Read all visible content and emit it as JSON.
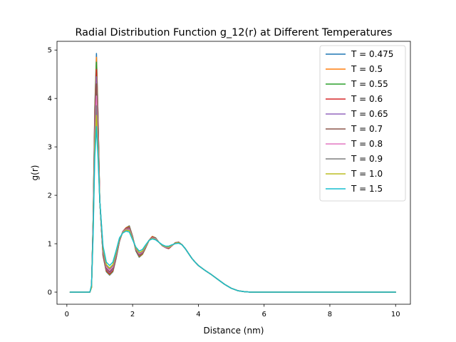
{
  "chart_data": {
    "type": "line",
    "title": "Radial Distribution Function g_12(r) at Different Temperatures",
    "xlabel": "Distance (nm)",
    "ylabel": "g(r)",
    "xlim": [
      -0.3,
      10.45
    ],
    "ylim": [
      -0.25,
      5.18
    ],
    "xticks": [
      0,
      2,
      4,
      6,
      8,
      10
    ],
    "yticks": [
      0,
      1,
      2,
      3,
      4,
      5
    ],
    "grid": false,
    "legend_position": "top-right",
    "series": [
      {
        "name": "T = 0.475",
        "color": "#1f77b4",
        "x": [
          0.1,
          0.7,
          0.75,
          0.8,
          0.85,
          0.9,
          0.95,
          1.0,
          1.1,
          1.2,
          1.3,
          1.4,
          1.5,
          1.6,
          1.7,
          1.8,
          1.9,
          2.0,
          2.1,
          2.2,
          2.3,
          2.4,
          2.5,
          2.6,
          2.7,
          2.8,
          2.9,
          3.0,
          3.1,
          3.2,
          3.3,
          3.4,
          3.5,
          3.6,
          3.7,
          3.8,
          3.9,
          4.0,
          4.2,
          4.4,
          4.6,
          4.8,
          5.0,
          5.2,
          5.4,
          5.6,
          6.0,
          7.0,
          8.0,
          9.0,
          10.0
        ],
        "y": [
          0,
          0,
          0.1,
          1.5,
          3.8,
          4.93,
          3.6,
          1.9,
          0.75,
          0.42,
          0.35,
          0.42,
          0.7,
          1.05,
          1.25,
          1.33,
          1.37,
          1.15,
          0.85,
          0.72,
          0.78,
          0.92,
          1.07,
          1.15,
          1.12,
          1.03,
          0.96,
          0.92,
          0.9,
          0.96,
          1.02,
          1.03,
          0.98,
          0.9,
          0.8,
          0.7,
          0.62,
          0.55,
          0.45,
          0.36,
          0.26,
          0.16,
          0.08,
          0.03,
          0.01,
          0,
          0,
          0,
          0,
          0,
          0
        ]
      },
      {
        "name": "T = 0.5",
        "color": "#ff7f0e",
        "x": [
          0.1,
          0.7,
          0.75,
          0.8,
          0.85,
          0.9,
          0.95,
          1.0,
          1.1,
          1.2,
          1.3,
          1.4,
          1.5,
          1.6,
          1.7,
          1.8,
          1.9,
          2.0,
          2.1,
          2.2,
          2.3,
          2.4,
          2.5,
          2.6,
          2.7,
          2.8,
          2.9,
          3.0,
          3.1,
          3.2,
          3.3,
          3.4,
          3.5,
          3.6,
          3.7,
          3.8,
          3.9,
          4.0,
          4.2,
          4.4,
          4.6,
          4.8,
          5.0,
          5.2,
          5.4,
          5.6,
          6.0,
          7.0,
          8.0,
          9.0,
          10.0
        ],
        "y": [
          0,
          0,
          0.1,
          1.5,
          3.75,
          4.85,
          3.6,
          1.9,
          0.76,
          0.43,
          0.36,
          0.43,
          0.71,
          1.05,
          1.25,
          1.33,
          1.36,
          1.15,
          0.86,
          0.73,
          0.78,
          0.92,
          1.07,
          1.15,
          1.12,
          1.03,
          0.96,
          0.92,
          0.9,
          0.96,
          1.02,
          1.03,
          0.98,
          0.9,
          0.8,
          0.7,
          0.62,
          0.55,
          0.45,
          0.36,
          0.26,
          0.16,
          0.08,
          0.03,
          0.01,
          0,
          0,
          0,
          0,
          0,
          0
        ]
      },
      {
        "name": "T = 0.55",
        "color": "#2ca02c",
        "x": [
          0.1,
          0.7,
          0.75,
          0.8,
          0.85,
          0.9,
          0.95,
          1.0,
          1.1,
          1.2,
          1.3,
          1.4,
          1.5,
          1.6,
          1.7,
          1.8,
          1.9,
          2.0,
          2.1,
          2.2,
          2.3,
          2.4,
          2.5,
          2.6,
          2.7,
          2.8,
          2.9,
          3.0,
          3.1,
          3.2,
          3.3,
          3.4,
          3.5,
          3.6,
          3.7,
          3.8,
          3.9,
          4.0,
          4.2,
          4.4,
          4.6,
          4.8,
          5.0,
          5.2,
          5.4,
          5.6,
          6.0,
          7.0,
          8.0,
          9.0,
          10.0
        ],
        "y": [
          0,
          0,
          0.1,
          1.5,
          3.7,
          4.75,
          3.55,
          1.9,
          0.77,
          0.44,
          0.37,
          0.44,
          0.72,
          1.05,
          1.25,
          1.32,
          1.35,
          1.15,
          0.86,
          0.74,
          0.79,
          0.92,
          1.07,
          1.14,
          1.12,
          1.03,
          0.96,
          0.92,
          0.9,
          0.96,
          1.02,
          1.03,
          0.98,
          0.9,
          0.8,
          0.7,
          0.62,
          0.55,
          0.45,
          0.36,
          0.26,
          0.16,
          0.08,
          0.03,
          0.01,
          0,
          0,
          0,
          0,
          0,
          0
        ]
      },
      {
        "name": "T = 0.6",
        "color": "#d62728",
        "x": [
          0.1,
          0.7,
          0.75,
          0.8,
          0.85,
          0.9,
          0.95,
          1.0,
          1.1,
          1.2,
          1.3,
          1.4,
          1.5,
          1.6,
          1.7,
          1.8,
          1.9,
          2.0,
          2.1,
          2.2,
          2.3,
          2.4,
          2.5,
          2.6,
          2.7,
          2.8,
          2.9,
          3.0,
          3.1,
          3.2,
          3.3,
          3.4,
          3.5,
          3.6,
          3.7,
          3.8,
          3.9,
          4.0,
          4.2,
          4.4,
          4.6,
          4.8,
          5.0,
          5.2,
          5.4,
          5.6,
          6.0,
          7.0,
          8.0,
          9.0,
          10.0
        ],
        "y": [
          0,
          0,
          0.1,
          1.45,
          3.6,
          4.6,
          3.45,
          1.9,
          0.78,
          0.45,
          0.38,
          0.45,
          0.73,
          1.06,
          1.25,
          1.32,
          1.34,
          1.14,
          0.87,
          0.75,
          0.8,
          0.93,
          1.07,
          1.14,
          1.11,
          1.03,
          0.96,
          0.92,
          0.9,
          0.96,
          1.02,
          1.03,
          0.98,
          0.9,
          0.8,
          0.7,
          0.62,
          0.55,
          0.45,
          0.36,
          0.26,
          0.16,
          0.08,
          0.03,
          0.01,
          0,
          0,
          0,
          0,
          0,
          0
        ]
      },
      {
        "name": "T = 0.65",
        "color": "#9467bd",
        "x": [
          0.1,
          0.7,
          0.75,
          0.8,
          0.85,
          0.9,
          0.95,
          1.0,
          1.1,
          1.2,
          1.3,
          1.4,
          1.5,
          1.6,
          1.7,
          1.8,
          1.9,
          2.0,
          2.1,
          2.2,
          2.3,
          2.4,
          2.5,
          2.6,
          2.7,
          2.8,
          2.9,
          3.0,
          3.1,
          3.2,
          3.3,
          3.4,
          3.5,
          3.6,
          3.7,
          3.8,
          3.9,
          4.0,
          4.2,
          4.4,
          4.6,
          4.8,
          5.0,
          5.2,
          5.4,
          5.6,
          6.0,
          7.0,
          8.0,
          9.0,
          10.0
        ],
        "y": [
          0,
          0,
          0.1,
          1.45,
          3.5,
          4.45,
          3.4,
          1.9,
          0.8,
          0.47,
          0.4,
          0.47,
          0.74,
          1.06,
          1.25,
          1.31,
          1.33,
          1.14,
          0.88,
          0.76,
          0.81,
          0.93,
          1.07,
          1.13,
          1.11,
          1.03,
          0.96,
          0.92,
          0.91,
          0.96,
          1.02,
          1.03,
          0.98,
          0.9,
          0.8,
          0.7,
          0.62,
          0.55,
          0.45,
          0.36,
          0.26,
          0.16,
          0.08,
          0.03,
          0.01,
          0,
          0,
          0,
          0,
          0,
          0
        ]
      },
      {
        "name": "T = 0.7",
        "color": "#8c564b",
        "x": [
          0.1,
          0.7,
          0.75,
          0.8,
          0.85,
          0.9,
          0.95,
          1.0,
          1.1,
          1.2,
          1.3,
          1.4,
          1.5,
          1.6,
          1.7,
          1.8,
          1.9,
          2.0,
          2.1,
          2.2,
          2.3,
          2.4,
          2.5,
          2.6,
          2.7,
          2.8,
          2.9,
          3.0,
          3.1,
          3.2,
          3.3,
          3.4,
          3.5,
          3.6,
          3.7,
          3.8,
          3.9,
          4.0,
          4.2,
          4.4,
          4.6,
          4.8,
          5.0,
          5.2,
          5.4,
          5.6,
          6.0,
          7.0,
          8.0,
          9.0,
          10.0
        ],
        "y": [
          0,
          0,
          0.1,
          1.4,
          3.4,
          4.3,
          3.3,
          1.9,
          0.82,
          0.49,
          0.42,
          0.49,
          0.76,
          1.07,
          1.24,
          1.31,
          1.32,
          1.13,
          0.88,
          0.77,
          0.82,
          0.94,
          1.07,
          1.13,
          1.1,
          1.03,
          0.96,
          0.93,
          0.91,
          0.96,
          1.02,
          1.03,
          0.98,
          0.9,
          0.8,
          0.7,
          0.62,
          0.55,
          0.45,
          0.36,
          0.26,
          0.16,
          0.08,
          0.03,
          0.01,
          0,
          0,
          0,
          0,
          0,
          0
        ]
      },
      {
        "name": "T = 0.8",
        "color": "#e377c2",
        "x": [
          0.1,
          0.7,
          0.75,
          0.8,
          0.85,
          0.9,
          0.95,
          1.0,
          1.1,
          1.2,
          1.3,
          1.4,
          1.5,
          1.6,
          1.7,
          1.8,
          1.9,
          2.0,
          2.1,
          2.2,
          2.3,
          2.4,
          2.5,
          2.6,
          2.7,
          2.8,
          2.9,
          3.0,
          3.1,
          3.2,
          3.3,
          3.4,
          3.5,
          3.6,
          3.7,
          3.8,
          3.9,
          4.0,
          4.2,
          4.4,
          4.6,
          4.8,
          5.0,
          5.2,
          5.4,
          5.6,
          6.0,
          7.0,
          8.0,
          9.0,
          10.0
        ],
        "y": [
          0,
          0,
          0.1,
          1.35,
          3.25,
          4.05,
          3.15,
          1.9,
          0.85,
          0.52,
          0.45,
          0.52,
          0.78,
          1.08,
          1.24,
          1.3,
          1.3,
          1.12,
          0.89,
          0.79,
          0.83,
          0.95,
          1.07,
          1.12,
          1.1,
          1.03,
          0.96,
          0.93,
          0.92,
          0.96,
          1.01,
          1.02,
          0.98,
          0.9,
          0.8,
          0.7,
          0.62,
          0.55,
          0.45,
          0.36,
          0.26,
          0.16,
          0.08,
          0.03,
          0.01,
          0,
          0,
          0,
          0,
          0,
          0
        ]
      },
      {
        "name": "T = 0.9",
        "color": "#7f7f7f",
        "x": [
          0.1,
          0.7,
          0.75,
          0.8,
          0.85,
          0.9,
          0.95,
          1.0,
          1.1,
          1.2,
          1.3,
          1.4,
          1.5,
          1.6,
          1.7,
          1.8,
          1.9,
          2.0,
          2.1,
          2.2,
          2.3,
          2.4,
          2.5,
          2.6,
          2.7,
          2.8,
          2.9,
          3.0,
          3.1,
          3.2,
          3.3,
          3.4,
          3.5,
          3.6,
          3.7,
          3.8,
          3.9,
          4.0,
          4.2,
          4.4,
          4.6,
          4.8,
          5.0,
          5.2,
          5.4,
          5.6,
          6.0,
          7.0,
          8.0,
          9.0,
          10.0
        ],
        "y": [
          0,
          0,
          0.1,
          1.3,
          3.1,
          3.85,
          3.0,
          1.9,
          0.88,
          0.55,
          0.48,
          0.55,
          0.8,
          1.09,
          1.23,
          1.29,
          1.28,
          1.11,
          0.9,
          0.81,
          0.84,
          0.96,
          1.07,
          1.11,
          1.09,
          1.03,
          0.96,
          0.94,
          0.93,
          0.97,
          1.01,
          1.02,
          0.98,
          0.9,
          0.8,
          0.7,
          0.62,
          0.55,
          0.45,
          0.36,
          0.26,
          0.16,
          0.08,
          0.03,
          0.01,
          0,
          0,
          0,
          0,
          0,
          0
        ]
      },
      {
        "name": "T = 1.0",
        "color": "#bcbd22",
        "x": [
          0.1,
          0.7,
          0.75,
          0.8,
          0.85,
          0.9,
          0.95,
          1.0,
          1.1,
          1.2,
          1.3,
          1.4,
          1.5,
          1.6,
          1.7,
          1.8,
          1.9,
          2.0,
          2.1,
          2.2,
          2.3,
          2.4,
          2.5,
          2.6,
          2.7,
          2.8,
          2.9,
          3.0,
          3.1,
          3.2,
          3.3,
          3.4,
          3.5,
          3.6,
          3.7,
          3.8,
          3.9,
          4.0,
          4.2,
          4.4,
          4.6,
          4.8,
          5.0,
          5.2,
          5.4,
          5.6,
          6.0,
          7.0,
          8.0,
          9.0,
          10.0
        ],
        "y": [
          0,
          0,
          0.1,
          1.25,
          3.0,
          3.65,
          2.9,
          1.9,
          0.9,
          0.57,
          0.5,
          0.57,
          0.82,
          1.1,
          1.23,
          1.28,
          1.27,
          1.1,
          0.91,
          0.82,
          0.85,
          0.96,
          1.07,
          1.11,
          1.09,
          1.03,
          0.97,
          0.94,
          0.93,
          0.97,
          1.01,
          1.02,
          0.98,
          0.9,
          0.8,
          0.7,
          0.62,
          0.55,
          0.45,
          0.36,
          0.26,
          0.16,
          0.08,
          0.03,
          0.01,
          0,
          0,
          0,
          0,
          0,
          0
        ]
      },
      {
        "name": "T = 1.5",
        "color": "#17becf",
        "x": [
          0.1,
          0.7,
          0.75,
          0.8,
          0.85,
          0.9,
          0.95,
          1.0,
          1.1,
          1.2,
          1.3,
          1.4,
          1.5,
          1.6,
          1.7,
          1.8,
          1.9,
          2.0,
          2.1,
          2.2,
          2.3,
          2.4,
          2.5,
          2.6,
          2.7,
          2.8,
          2.9,
          3.0,
          3.1,
          3.2,
          3.3,
          3.4,
          3.5,
          3.6,
          3.7,
          3.8,
          3.9,
          4.0,
          4.2,
          4.4,
          4.6,
          4.8,
          5.0,
          5.2,
          5.4,
          5.6,
          6.0,
          7.0,
          8.0,
          9.0,
          10.0
        ],
        "y": [
          0,
          0,
          0.15,
          1.2,
          2.8,
          3.42,
          2.75,
          1.9,
          0.95,
          0.62,
          0.55,
          0.62,
          0.86,
          1.12,
          1.22,
          1.26,
          1.24,
          1.08,
          0.93,
          0.85,
          0.88,
          0.98,
          1.07,
          1.1,
          1.08,
          1.03,
          0.98,
          0.95,
          0.95,
          0.98,
          1.0,
          1.01,
          0.98,
          0.9,
          0.8,
          0.7,
          0.62,
          0.55,
          0.45,
          0.36,
          0.26,
          0.16,
          0.08,
          0.03,
          0.01,
          0,
          0,
          0,
          0,
          0,
          0
        ]
      }
    ]
  }
}
